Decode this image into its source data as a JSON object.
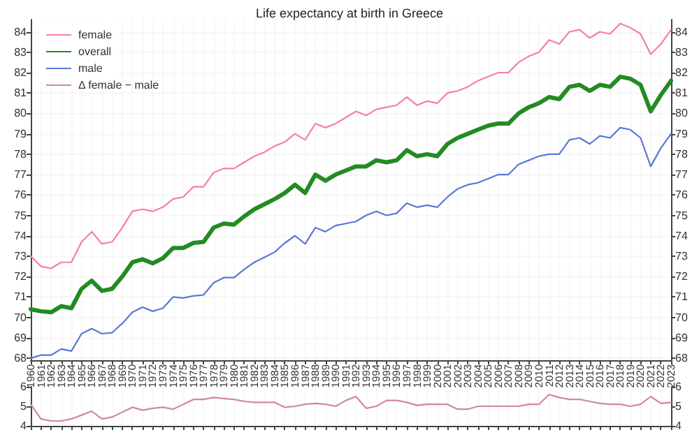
{
  "chart_data": [
    {
      "type": "line",
      "title": "Life expectancy at birth in Greece",
      "categories": [
        "1960",
        "1961",
        "1962",
        "1963",
        "1964",
        "1965",
        "1966",
        "1967",
        "1968",
        "1969",
        "1970",
        "1971",
        "1972",
        "1973",
        "1974",
        "1975",
        "1976",
        "1977",
        "1978",
        "1979",
        "1980",
        "1981",
        "1982",
        "1983",
        "1984",
        "1985",
        "1986",
        "1987",
        "1988",
        "1989",
        "1990",
        "1991",
        "1992",
        "1993",
        "1994",
        "1995",
        "1996",
        "1997",
        "1998",
        "1999",
        "2000",
        "2001",
        "2002",
        "2003",
        "2004",
        "2005",
        "2006",
        "2007",
        "2008",
        "2009",
        "2010",
        "2011",
        "2012",
        "2013",
        "2014",
        "2015",
        "2016",
        "2017",
        "2018",
        "2019",
        "2020",
        "2021",
        "2022",
        "2023"
      ],
      "series": [
        {
          "name": "female",
          "color": "#f67fa3",
          "values": [
            73.0,
            72.5,
            72.4,
            72.7,
            72.7,
            73.7,
            74.2,
            73.6,
            73.7,
            74.4,
            75.2,
            75.3,
            75.2,
            75.4,
            75.8,
            75.9,
            76.4,
            76.4,
            77.1,
            77.3,
            77.3,
            77.6,
            77.9,
            78.1,
            78.4,
            78.6,
            79.0,
            78.7,
            79.5,
            79.3,
            79.5,
            79.8,
            80.1,
            79.9,
            80.2,
            80.3,
            80.4,
            80.8,
            80.4,
            80.6,
            80.5,
            81.0,
            81.1,
            81.3,
            81.6,
            81.8,
            82.0,
            82.0,
            82.5,
            82.8,
            83.0,
            83.6,
            83.4,
            84.0,
            84.1,
            83.7,
            84.0,
            83.9,
            84.4,
            84.2,
            83.9,
            82.9,
            83.4,
            84.1
          ]
        },
        {
          "name": "overall",
          "color": "#228b22",
          "values": [
            70.4,
            70.3,
            70.25,
            70.55,
            70.45,
            71.4,
            71.8,
            71.3,
            71.4,
            72.0,
            72.7,
            72.85,
            72.65,
            72.9,
            73.4,
            73.4,
            73.65,
            73.7,
            74.4,
            74.6,
            74.55,
            74.95,
            75.3,
            75.55,
            75.8,
            76.1,
            76.5,
            76.1,
            77.0,
            76.7,
            77.0,
            77.2,
            77.4,
            77.4,
            77.7,
            77.6,
            77.7,
            78.2,
            77.9,
            78.0,
            77.9,
            78.5,
            78.8,
            79.0,
            79.2,
            79.4,
            79.5,
            79.5,
            80.0,
            80.3,
            80.5,
            80.8,
            80.7,
            81.3,
            81.4,
            81.1,
            81.4,
            81.3,
            81.8,
            81.7,
            81.4,
            80.1,
            80.9,
            81.6
          ]
        },
        {
          "name": "male",
          "color": "#5a78d6",
          "values": [
            68.0,
            68.15,
            68.15,
            68.45,
            68.35,
            69.2,
            69.45,
            69.2,
            69.25,
            69.7,
            70.25,
            70.5,
            70.3,
            70.45,
            71.0,
            70.95,
            71.05,
            71.1,
            71.7,
            71.95,
            71.95,
            72.35,
            72.7,
            72.95,
            73.2,
            73.65,
            74.0,
            73.6,
            74.4,
            74.2,
            74.5,
            74.6,
            74.7,
            75.0,
            75.2,
            75.0,
            75.1,
            75.6,
            75.4,
            75.5,
            75.4,
            75.9,
            76.3,
            76.5,
            76.6,
            76.8,
            77.0,
            77.0,
            77.5,
            77.7,
            77.9,
            78.0,
            78.0,
            78.7,
            78.8,
            78.5,
            78.9,
            78.8,
            79.3,
            79.2,
            78.8,
            77.4,
            78.3,
            79.0
          ]
        }
      ],
      "ylim": [
        67.9,
        84.6
      ],
      "yticks": [
        68,
        69,
        70,
        71,
        72,
        73,
        74,
        75,
        76,
        77,
        78,
        79,
        80,
        81,
        82,
        83,
        84
      ],
      "y2lim": [
        67.9,
        84.6
      ],
      "y2ticks": [
        68,
        69,
        70,
        71,
        72,
        73,
        74,
        75,
        76,
        77,
        78,
        79,
        80,
        81,
        82,
        83,
        84
      ],
      "grid": true,
      "legend": "top left"
    },
    {
      "type": "line",
      "categories": [
        "1960",
        "1961",
        "1962",
        "1963",
        "1964",
        "1965",
        "1966",
        "1967",
        "1968",
        "1969",
        "1970",
        "1971",
        "1972",
        "1973",
        "1974",
        "1975",
        "1976",
        "1977",
        "1978",
        "1979",
        "1980",
        "1981",
        "1982",
        "1983",
        "1984",
        "1985",
        "1986",
        "1987",
        "1988",
        "1989",
        "1990",
        "1991",
        "1992",
        "1993",
        "1994",
        "1995",
        "1996",
        "1997",
        "1998",
        "1999",
        "2000",
        "2001",
        "2002",
        "2003",
        "2004",
        "2005",
        "2006",
        "2007",
        "2008",
        "2009",
        "2010",
        "2011",
        "2012",
        "2013",
        "2014",
        "2015",
        "2016",
        "2017",
        "2018",
        "2019",
        "2020",
        "2021",
        "2022",
        "2023"
      ],
      "series": [
        {
          "name": "Δ female − male",
          "color": "#d0899a",
          "values": [
            5.1,
            4.35,
            4.25,
            4.25,
            4.35,
            4.55,
            4.75,
            4.35,
            4.45,
            4.7,
            4.95,
            4.8,
            4.9,
            4.95,
            4.85,
            5.1,
            5.35,
            5.35,
            5.45,
            5.4,
            5.35,
            5.25,
            5.2,
            5.2,
            5.2,
            4.95,
            5.0,
            5.1,
            5.15,
            5.1,
            5.0,
            5.3,
            5.5,
            4.9,
            5.0,
            5.3,
            5.3,
            5.2,
            5.05,
            5.1,
            5.1,
            5.1,
            4.85,
            4.85,
            5.0,
            5.0,
            5.0,
            5.0,
            5.0,
            5.1,
            5.1,
            5.6,
            5.45,
            5.35,
            5.35,
            5.25,
            5.15,
            5.1,
            5.1,
            5.0,
            5.1,
            5.5,
            5.15,
            5.2
          ]
        }
      ],
      "ylim": [
        4,
        6
      ],
      "yticks": [
        4,
        5,
        6
      ],
      "y2lim": [
        4,
        6
      ],
      "y2ticks": [
        4,
        5,
        6
      ],
      "grid": "x",
      "legend": "top left",
      "tick_labels": "y"
    }
  ]
}
